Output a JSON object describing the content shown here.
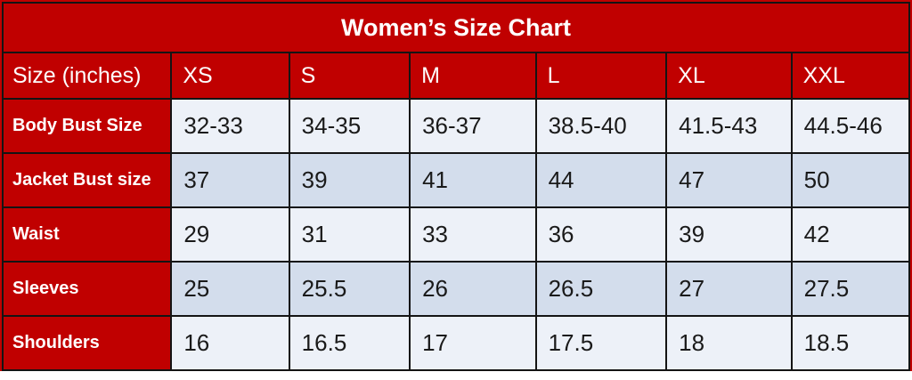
{
  "chart_data": {
    "type": "table",
    "title": "Women’s Size Chart",
    "unit_note": "inches",
    "columns": [
      "Size (inches)",
      "XS",
      "S",
      "M",
      "L",
      "XL",
      "XXL"
    ],
    "rows": [
      {
        "label": "Body Bust Size",
        "values": [
          "32-33",
          "34-35",
          "36-37",
          "38.5-40",
          "41.5-43",
          "44.5-46"
        ]
      },
      {
        "label": "Jacket Bust size",
        "values": [
          "37",
          "39",
          "41",
          "44",
          "47",
          "50"
        ]
      },
      {
        "label": "Waist",
        "values": [
          "29",
          "31",
          "33",
          "36",
          "39",
          "42"
        ]
      },
      {
        "label": "Sleeves",
        "values": [
          "25",
          "25.5",
          "26",
          "26.5",
          "27",
          "27.5"
        ]
      },
      {
        "label": "Shoulders",
        "values": [
          "16",
          "16.5",
          "17",
          "17.5",
          "18",
          "18.5"
        ]
      }
    ],
    "layout": {
      "grid": true,
      "zebra_rows": [
        "light",
        "shaded",
        "light",
        "shaded",
        "light"
      ]
    },
    "colors": {
      "header_bg": "#c00000",
      "header_text": "#ffffff",
      "row_light": "#edf1f8",
      "row_shaded": "#d3ddec",
      "grid_line": "#141414",
      "cell_text": "#1a1a1a",
      "page_margin_bottom": "#ffffff"
    }
  }
}
